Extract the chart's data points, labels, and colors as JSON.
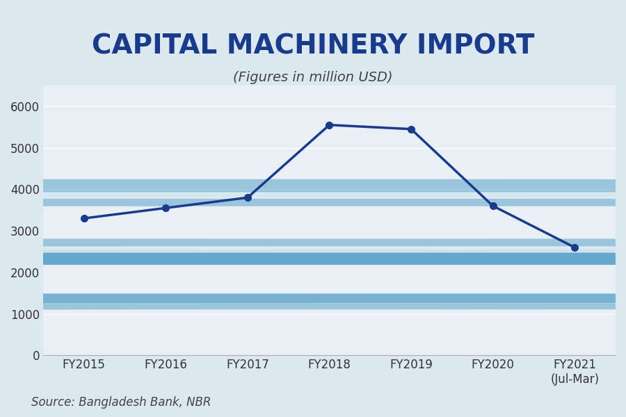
{
  "title": "CAPITAL MACHINERY IMPORT",
  "subtitle": "(Figures in million USD)",
  "source": "Source: Bangladesh Bank, NBR",
  "categories": [
    "FY2015",
    "FY2016",
    "FY2017",
    "FY2018",
    "FY2019",
    "FY2020",
    "FY2021\n(Jul-Mar)"
  ],
  "values": [
    3300,
    3550,
    3800,
    5550,
    5450,
    3600,
    2600
  ],
  "line_color": "#1a3a8c",
  "bg_color": "#dce8ef",
  "plot_bg_color": "#e8f0f5",
  "ylim": [
    0,
    6500
  ],
  "yticks": [
    0,
    1000,
    2000,
    3000,
    4000,
    5000,
    6000
  ],
  "title_color": "#1a3a8c",
  "title_fontsize": 28,
  "subtitle_fontsize": 14,
  "source_fontsize": 12,
  "line_width": 2.5,
  "marker_size": 7
}
